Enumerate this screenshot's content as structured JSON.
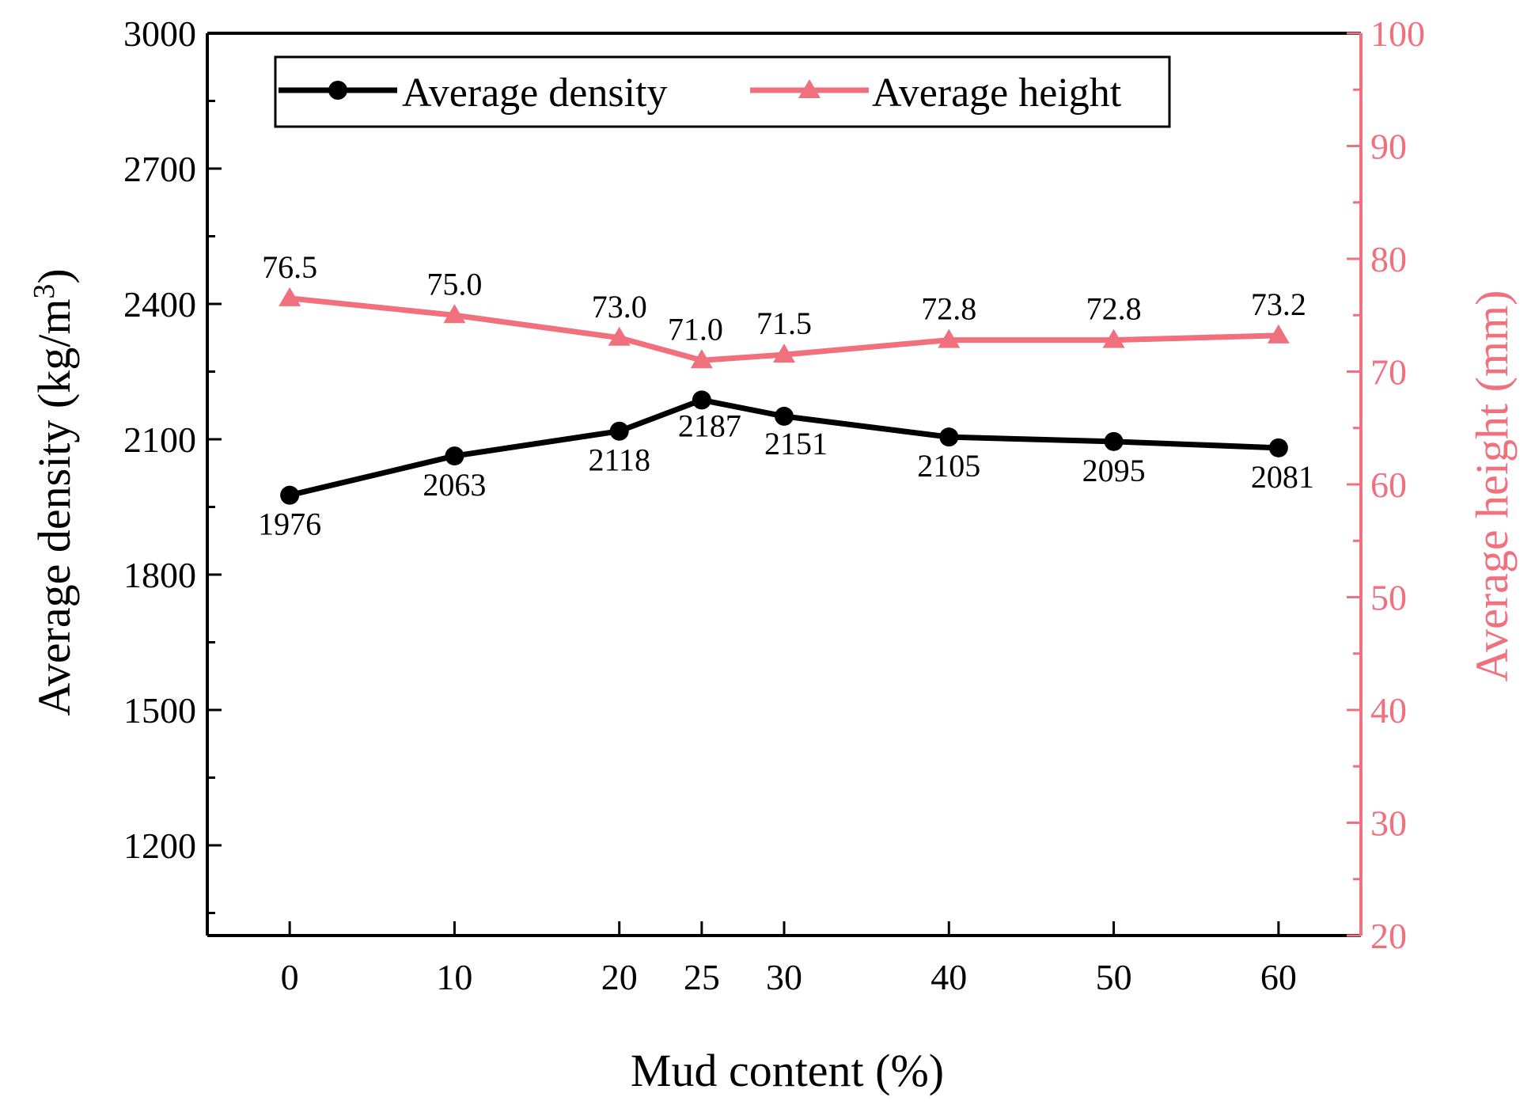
{
  "chart_data": {
    "type": "line",
    "xlabel": "Mud content (%)",
    "ylabel_left": "Average density (kg/m",
    "ylabel_left_sup": "3",
    "ylabel_left_end": ")",
    "ylabel_right": "Average height (mm)",
    "x": [
      0,
      10,
      20,
      25,
      30,
      40,
      50,
      60
    ],
    "x_tick_labels": [
      "0",
      "10",
      "20",
      "25",
      "30",
      "40",
      "50",
      "60"
    ],
    "xlim": [
      -5,
      65
    ],
    "y_left_lim": [
      1000,
      3000
    ],
    "y_left_ticks": [
      "1200",
      "1500",
      "1800",
      "2100",
      "2400",
      "2700",
      "3000"
    ],
    "y_right_lim": [
      20,
      100
    ],
    "y_right_ticks": [
      "20",
      "30",
      "40",
      "50",
      "60",
      "70",
      "80",
      "90",
      "100"
    ],
    "legend_position": "top-left",
    "series": [
      {
        "name": "Average density",
        "axis": "left",
        "marker": "circle",
        "color": "#000000",
        "values": [
          1976,
          2063,
          2118,
          2187,
          2151,
          2105,
          2095,
          2081
        ],
        "labels": [
          "1976",
          "2063",
          "2118",
          "2187",
          "2151",
          "2105",
          "2095",
          "2081"
        ]
      },
      {
        "name": "Average height",
        "axis": "right",
        "marker": "triangle",
        "color": "#F0707E",
        "values": [
          76.5,
          75.0,
          73.0,
          71.0,
          71.5,
          72.8,
          72.8,
          73.2
        ],
        "labels": [
          "76.5",
          "75.0",
          "73.0",
          "71.0",
          "71.5",
          "72.8",
          "72.8",
          "73.2"
        ]
      }
    ]
  }
}
